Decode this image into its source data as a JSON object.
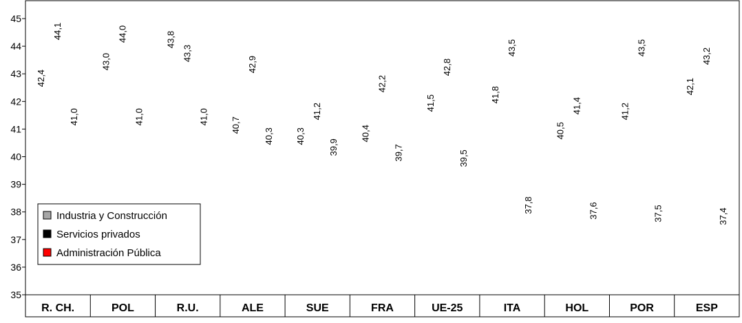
{
  "chart_data": {
    "type": "bar",
    "categories": [
      "R. CH.",
      "POL",
      "R.U.",
      "ALE",
      "SUE",
      "FRA",
      "UE-25",
      "ITA",
      "HOL",
      "POR",
      "ESP"
    ],
    "series": [
      {
        "name": "Industria y Construcción",
        "color": "#a6a6a6",
        "values": [
          42.4,
          43.0,
          43.8,
          40.7,
          40.3,
          40.4,
          41.5,
          41.8,
          40.5,
          41.2,
          42.1
        ],
        "labels": [
          "42,4",
          "43,0",
          "43,8",
          "40,7",
          "40,3",
          "40,4",
          "41,5",
          "41,8",
          "40,5",
          "41,2",
          "42,1"
        ]
      },
      {
        "name": "Servicios privados",
        "color": "#000000",
        "values": [
          44.1,
          44.0,
          43.3,
          42.9,
          41.2,
          42.2,
          42.8,
          43.5,
          41.4,
          43.5,
          43.2
        ],
        "labels": [
          "44,1",
          "44,0",
          "43,3",
          "42,9",
          "41,2",
          "42,2",
          "42,8",
          "43,5",
          "41,4",
          "43,5",
          "43,2"
        ]
      },
      {
        "name": "Administración Pública",
        "color": "#ff0000",
        "values": [
          41.0,
          41.0,
          41.0,
          40.3,
          39.9,
          39.7,
          39.5,
          37.8,
          37.6,
          37.5,
          37.4
        ],
        "labels": [
          "41,0",
          "41,0",
          "41,0",
          "40,3",
          "39,9",
          "39,7",
          "39,5",
          "37,8",
          "37,6",
          "37,5",
          "37,4"
        ]
      }
    ],
    "ylim": [
      35,
      45
    ],
    "yticks": [
      "35",
      "36",
      "37",
      "38",
      "39",
      "40",
      "41",
      "42",
      "43",
      "44",
      "45"
    ],
    "grid": false,
    "legend_position": "bottom-left",
    "title": "",
    "xlabel": "",
    "ylabel": ""
  }
}
